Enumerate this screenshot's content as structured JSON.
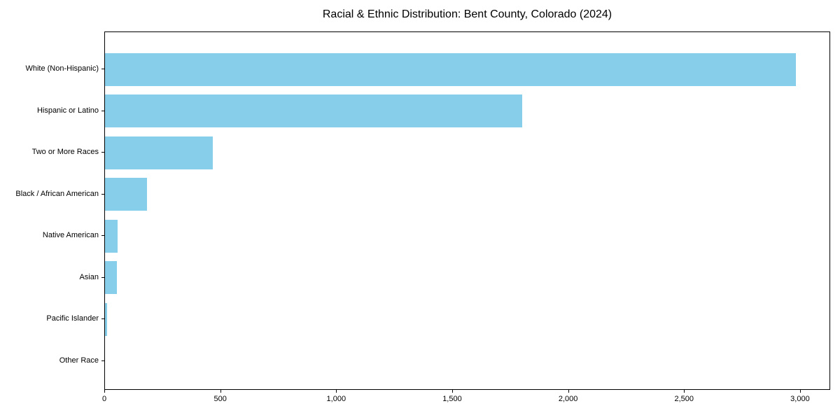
{
  "chart_data": {
    "type": "bar",
    "orientation": "horizontal",
    "title": "Racial & Ethnic Distribution: Bent County, Colorado (2024)",
    "xlabel": "",
    "ylabel": "",
    "categories": [
      "White (Non-Hispanic)",
      "Hispanic or Latino",
      "Two or More Races",
      "Black / African American",
      "Native American",
      "Asian",
      "Pacific Islander",
      "Other Race"
    ],
    "values": [
      2980,
      1800,
      465,
      180,
      55,
      50,
      8,
      0
    ],
    "xlim": [
      0,
      3130
    ],
    "x_ticks": [
      0,
      500,
      1000,
      1500,
      2000,
      2500,
      3000
    ],
    "x_tick_labels": [
      "0",
      "500",
      "1,000",
      "1,500",
      "2,000",
      "2,500",
      "3,000"
    ],
    "bar_color": "#87CEEB",
    "grid": false,
    "legend": "none"
  }
}
